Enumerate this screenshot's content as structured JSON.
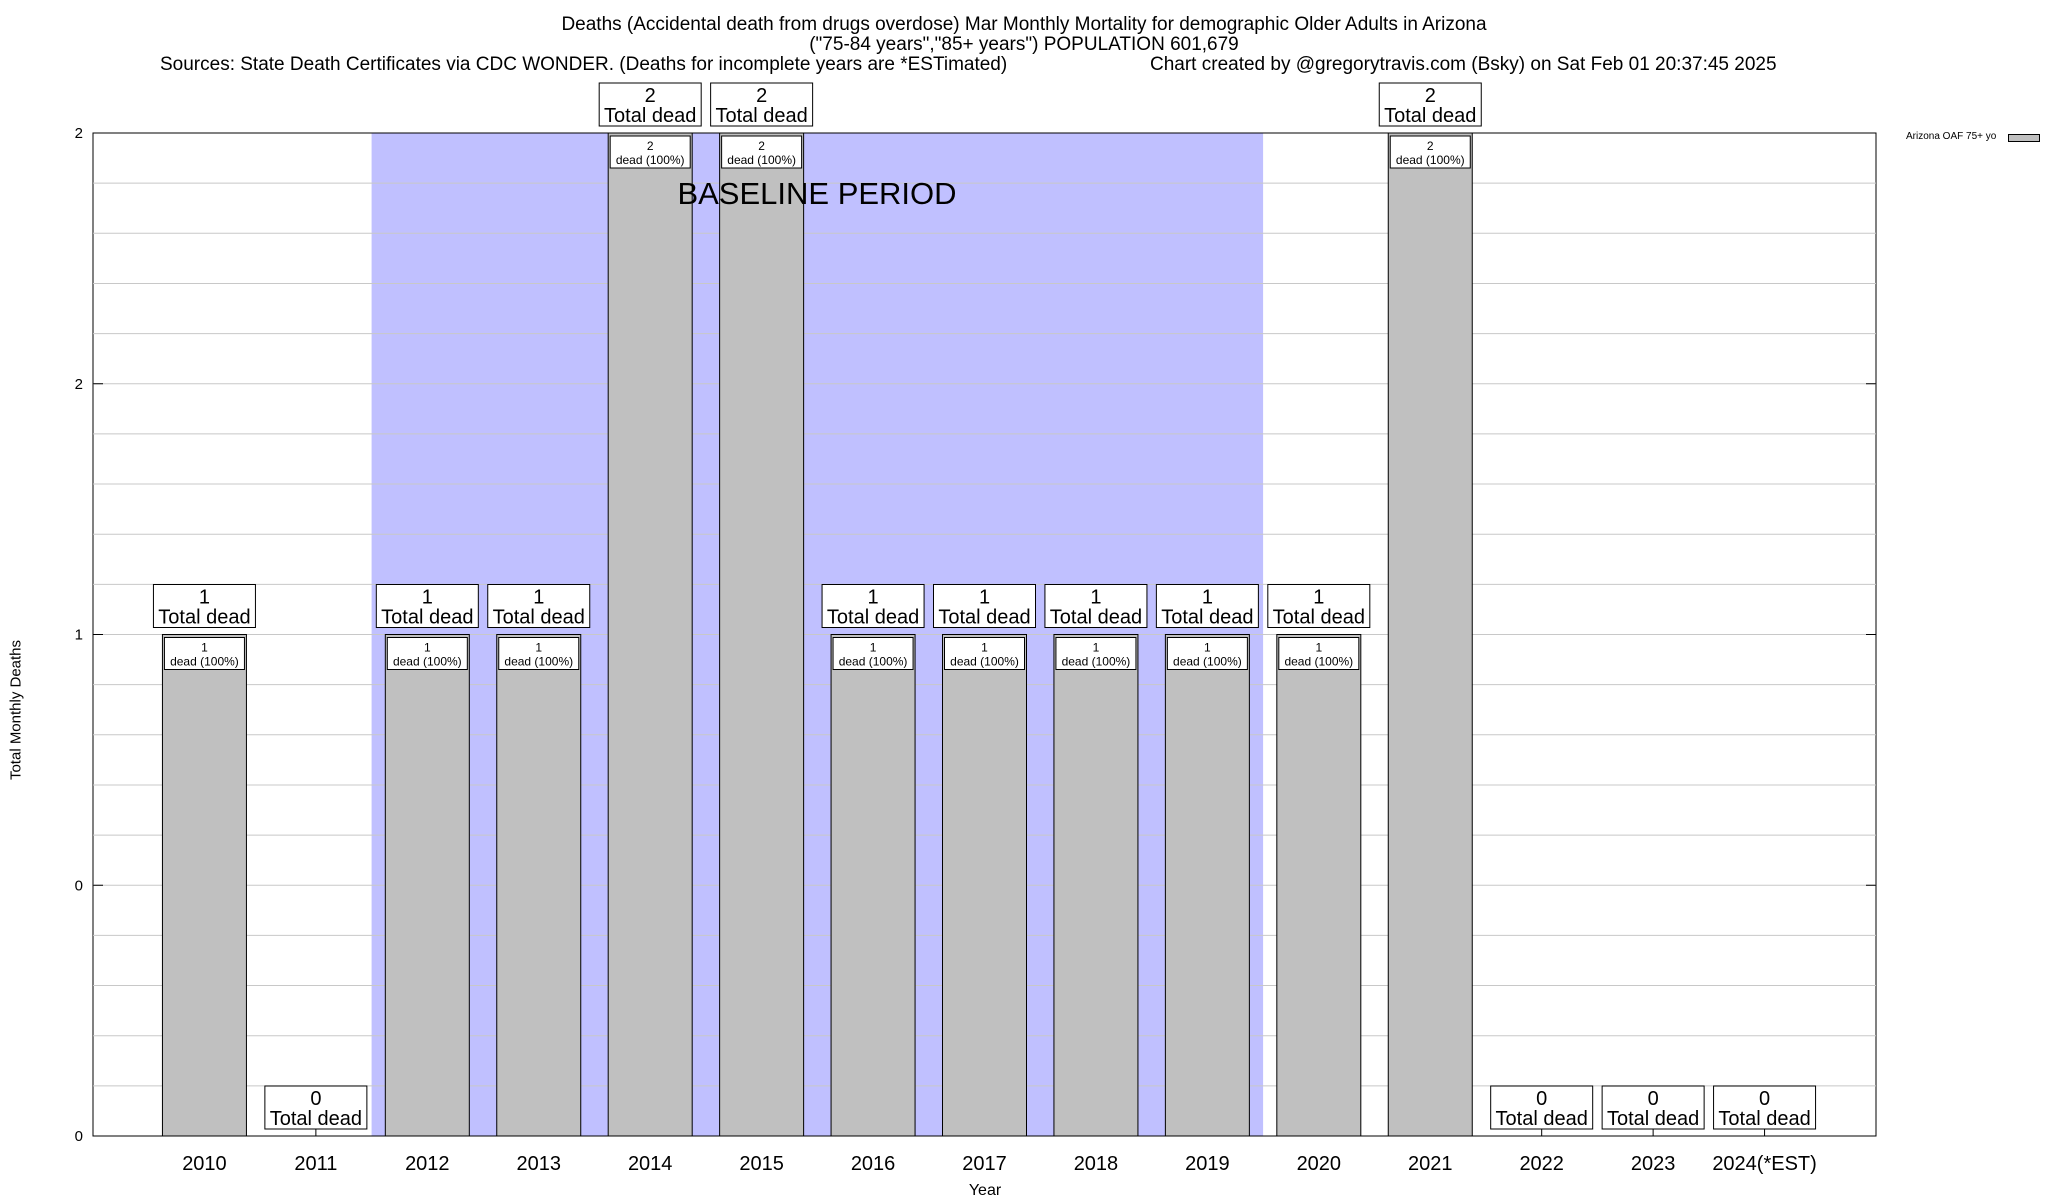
{
  "chart_data": {
    "type": "bar",
    "title": "Deaths (Accidental death from drugs overdose) Mar Monthly Mortality for demographic Older Adults in Arizona",
    "subtitle": "(\"75-84 years\",\"85+ years\") POPULATION 601,679",
    "sources": "Sources: State Death Certificates via CDC WONDER. (Deaths for incomplete years are *ESTimated)",
    "credit": "Chart created by @gregorytravis.com (Bsky) on Sat Feb 01 20:37:45 2025",
    "xlabel": "Year",
    "ylabel": "Total Monthly Deaths",
    "categories": [
      "2010",
      "2011",
      "2012",
      "2013",
      "2014",
      "2015",
      "2016",
      "2017",
      "2018",
      "2019",
      "2020",
      "2021",
      "2022",
      "2023",
      "2024(*EST)"
    ],
    "series": [
      {
        "name": "Arizona OAF 75+ yo",
        "values": [
          1,
          0,
          1,
          1,
          2,
          2,
          1,
          1,
          1,
          1,
          1,
          2,
          0,
          0,
          0
        ],
        "color": "#c0c0c0"
      }
    ],
    "ylim": [
      0,
      2
    ],
    "yticks": [
      0,
      0.5,
      1,
      1.5,
      2
    ],
    "ytick_labels": [
      "0",
      "0",
      "1",
      "2",
      "2"
    ],
    "total_label_suffix": "Total dead",
    "inner_label_suffix": "dead (100%)",
    "baseline": {
      "label": "BASELINE PERIOD",
      "start": "2012",
      "end": "2019",
      "color": "#c0c0ff"
    },
    "legend_position": "top-right",
    "grid": true
  }
}
